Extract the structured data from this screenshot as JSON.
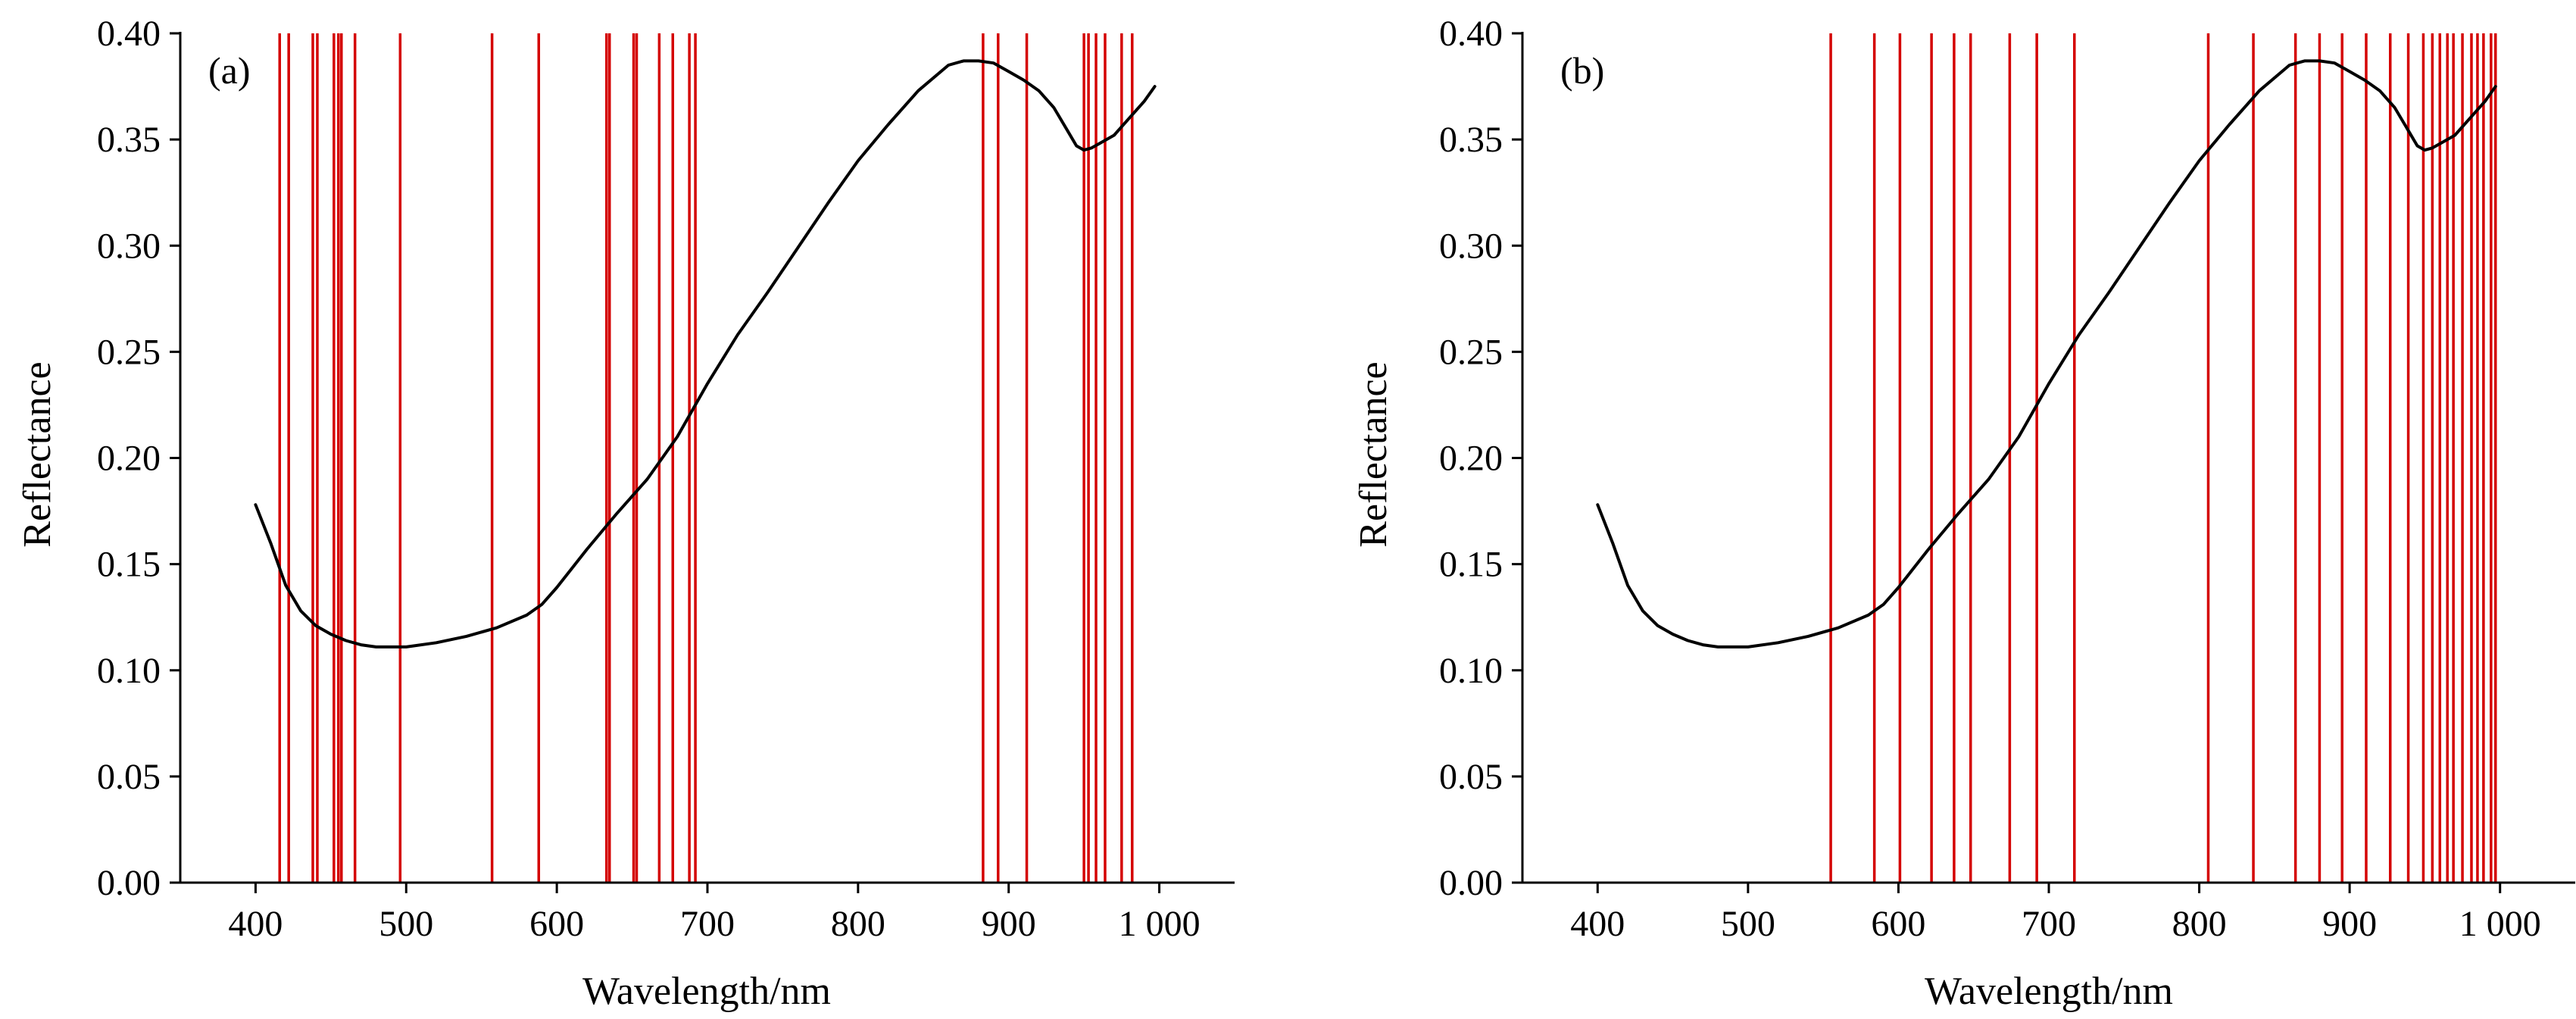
{
  "colors": {
    "curve": "#000000",
    "band_line": "#d40000",
    "axis": "#000000",
    "background": "#ffffff"
  },
  "chart_data": [
    {
      "type": "line",
      "panel_label": "(a)",
      "xlabel": "Wavelength/nm",
      "ylabel": "Reflectance",
      "xlim": [
        350,
        1050
      ],
      "ylim": [
        0,
        0.4
      ],
      "x_ticks": [
        400,
        500,
        600,
        700,
        800,
        900,
        1000
      ],
      "x_tick_labels": [
        "400",
        "500",
        "600",
        "700",
        "800",
        "900",
        "1 000"
      ],
      "y_ticks": [
        0,
        0.05,
        0.1,
        0.15,
        0.2,
        0.25,
        0.3,
        0.35,
        0.4
      ],
      "y_tick_labels": [
        "0.00",
        "0.05",
        "0.10",
        "0.15",
        "0.20",
        "0.25",
        "0.30",
        "0.35",
        "0.40"
      ],
      "grid": false,
      "series": [
        {
          "x": [
            400,
            410,
            420,
            430,
            440,
            450,
            460,
            470,
            480,
            490,
            500,
            520,
            540,
            560,
            580,
            590,
            600,
            620,
            640,
            660,
            680,
            700,
            720,
            740,
            760,
            780,
            800,
            820,
            840,
            860,
            870,
            880,
            890,
            900,
            910,
            920,
            930,
            940,
            945,
            950,
            955,
            960,
            970,
            980,
            990,
            997
          ],
          "y": [
            0.178,
            0.16,
            0.14,
            0.128,
            0.121,
            0.117,
            0.114,
            0.112,
            0.111,
            0.111,
            0.111,
            0.113,
            0.116,
            0.12,
            0.126,
            0.131,
            0.139,
            0.157,
            0.174,
            0.19,
            0.21,
            0.235,
            0.258,
            0.278,
            0.299,
            0.32,
            0.34,
            0.357,
            0.373,
            0.385,
            0.387,
            0.387,
            0.386,
            0.382,
            0.378,
            0.373,
            0.365,
            0.353,
            0.347,
            0.345,
            0.346,
            0.348,
            0.352,
            0.36,
            0.368,
            0.375
          ]
        }
      ],
      "selected_bands_nm": [
        416,
        422,
        438,
        441,
        452,
        455,
        457,
        466,
        496,
        557,
        588,
        633,
        635,
        651,
        653,
        668,
        677,
        688,
        692,
        883,
        893,
        912,
        950,
        953,
        958,
        964,
        975,
        982
      ]
    },
    {
      "type": "line",
      "panel_label": "(b)",
      "xlabel": "Wavelength/nm",
      "ylabel": "Reflectance",
      "xlim": [
        350,
        1050
      ],
      "ylim": [
        0,
        0.4
      ],
      "x_ticks": [
        400,
        500,
        600,
        700,
        800,
        900,
        1000
      ],
      "x_tick_labels": [
        "400",
        "500",
        "600",
        "700",
        "800",
        "900",
        "1 000"
      ],
      "y_ticks": [
        0,
        0.05,
        0.1,
        0.15,
        0.2,
        0.25,
        0.3,
        0.35,
        0.4
      ],
      "y_tick_labels": [
        "0.00",
        "0.05",
        "0.10",
        "0.15",
        "0.20",
        "0.25",
        "0.30",
        "0.35",
        "0.40"
      ],
      "grid": false,
      "series": [
        {
          "x": [
            400,
            410,
            420,
            430,
            440,
            450,
            460,
            470,
            480,
            490,
            500,
            520,
            540,
            560,
            580,
            590,
            600,
            620,
            640,
            660,
            680,
            700,
            720,
            740,
            760,
            780,
            800,
            820,
            840,
            860,
            870,
            880,
            890,
            900,
            910,
            920,
            930,
            940,
            945,
            950,
            955,
            960,
            970,
            980,
            990,
            997
          ],
          "y": [
            0.178,
            0.16,
            0.14,
            0.128,
            0.121,
            0.117,
            0.114,
            0.112,
            0.111,
            0.111,
            0.111,
            0.113,
            0.116,
            0.12,
            0.126,
            0.131,
            0.139,
            0.157,
            0.174,
            0.19,
            0.21,
            0.235,
            0.258,
            0.278,
            0.299,
            0.32,
            0.34,
            0.357,
            0.373,
            0.385,
            0.387,
            0.387,
            0.386,
            0.382,
            0.378,
            0.373,
            0.365,
            0.353,
            0.347,
            0.345,
            0.346,
            0.348,
            0.352,
            0.36,
            0.368,
            0.375
          ]
        }
      ],
      "selected_bands_nm": [
        555,
        584,
        601,
        622,
        637,
        648,
        674,
        692,
        717,
        806,
        836,
        864,
        880,
        895,
        911,
        927,
        939,
        949,
        955,
        960,
        965,
        969,
        975,
        981,
        985,
        989,
        994,
        997
      ]
    }
  ]
}
